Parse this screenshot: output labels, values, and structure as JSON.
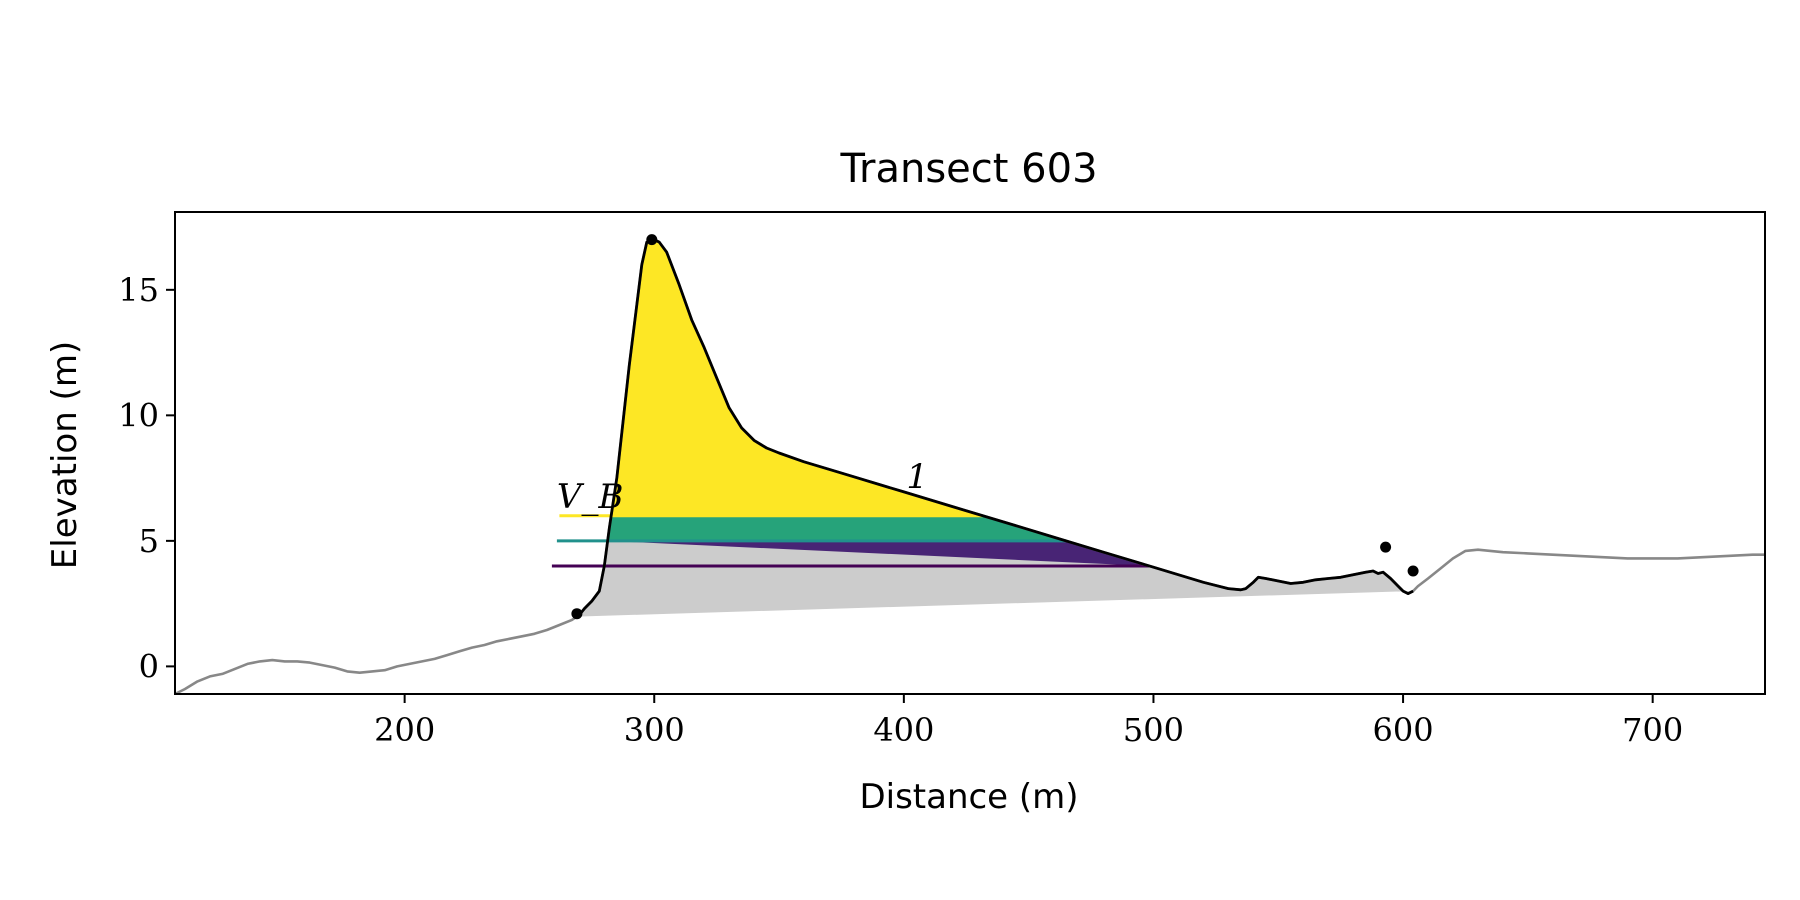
{
  "chart_data": {
    "type": "area",
    "title": "Transect 603",
    "xlabel": "Distance (m)",
    "ylabel": "Elevation (m)",
    "xlim": [
      108,
      745
    ],
    "ylim": [
      -1.1,
      18.1
    ],
    "xticks": [
      {
        "value": 200,
        "label": "200"
      },
      {
        "value": 300,
        "label": "300"
      },
      {
        "value": 400,
        "label": "400"
      },
      {
        "value": 500,
        "label": "500"
      },
      {
        "value": 600,
        "label": "600"
      },
      {
        "value": 700,
        "label": "700"
      }
    ],
    "yticks": [
      {
        "value": 0,
        "label": "0"
      },
      {
        "value": 5,
        "label": "5"
      },
      {
        "value": 10,
        "label": "10"
      },
      {
        "value": 15,
        "label": "15"
      }
    ],
    "grid": false,
    "annotations": [
      {
        "text": "V_B",
        "x": 261,
        "y": 6.3
      },
      {
        "text": "1",
        "x": 401,
        "y": 7.1
      }
    ],
    "colors": {
      "profile": "#888888",
      "dune_outline": "#000000",
      "base_fill": "#cccccc",
      "band_low": "#482475",
      "band_mid": "#26a37a",
      "band_high": "#fde725",
      "level_low": "#440154",
      "level_mid": "#21918c",
      "level_high": "#fde725"
    },
    "profile": {
      "x": [
        108,
        112,
        117,
        122,
        127,
        132,
        137,
        142,
        147,
        152,
        157,
        162,
        167,
        172,
        177,
        182,
        187,
        192,
        197,
        202,
        207,
        212,
        217,
        222,
        227,
        232,
        237,
        242,
        247,
        252,
        257,
        262,
        267,
        270,
        272,
        275,
        278,
        280,
        282,
        285,
        290,
        295,
        297,
        300,
        302,
        305,
        310,
        315,
        320,
        325,
        330,
        335,
        340,
        345,
        350,
        360,
        370,
        380,
        390,
        400,
        420,
        440,
        460,
        480,
        500,
        520,
        530,
        535,
        537,
        540,
        542,
        545,
        550,
        555,
        560,
        565,
        570,
        575,
        580,
        585,
        588,
        590,
        592,
        595,
        598,
        600,
        602,
        604,
        606,
        610,
        615,
        620,
        625,
        630,
        635,
        640,
        650,
        660,
        670,
        680,
        690,
        700,
        710,
        720,
        730,
        740,
        745
      ],
      "y": [
        -1.1,
        -0.9,
        -0.6,
        -0.4,
        -0.3,
        -0.1,
        0.1,
        0.2,
        0.25,
        0.2,
        0.2,
        0.15,
        0.05,
        -0.05,
        -0.2,
        -0.25,
        -0.2,
        -0.15,
        0.0,
        0.1,
        0.2,
        0.3,
        0.45,
        0.6,
        0.75,
        0.85,
        1.0,
        1.1,
        1.2,
        1.3,
        1.45,
        1.65,
        1.85,
        2.05,
        2.3,
        2.6,
        3.0,
        4.0,
        5.5,
        7.5,
        12.0,
        16.0,
        16.9,
        17.0,
        16.9,
        16.5,
        15.2,
        13.8,
        12.7,
        11.5,
        10.3,
        9.5,
        9.0,
        8.7,
        8.5,
        8.15,
        7.85,
        7.55,
        7.25,
        6.95,
        6.35,
        5.75,
        5.15,
        4.55,
        3.95,
        3.35,
        3.1,
        3.05,
        3.1,
        3.35,
        3.55,
        3.5,
        3.4,
        3.3,
        3.35,
        3.45,
        3.5,
        3.55,
        3.65,
        3.75,
        3.8,
        3.7,
        3.75,
        3.5,
        3.2,
        3.0,
        2.9,
        3.0,
        3.2,
        3.5,
        3.9,
        4.3,
        4.6,
        4.65,
        4.6,
        4.55,
        4.5,
        4.45,
        4.4,
        4.35,
        4.3,
        4.3,
        4.3,
        4.35,
        4.4,
        4.45,
        4.45
      ]
    },
    "dune": {
      "toe": {
        "x": 269,
        "y": 2.1
      },
      "crest": {
        "x": 299,
        "y": 17.0
      },
      "heel": {
        "x": 593,
        "y": 4.75
      },
      "end": {
        "x": 604,
        "y": 3.8
      },
      "base_line": {
        "from": [
          269,
          2.1
        ],
        "to": [
          604,
          3.8
        ]
      }
    },
    "levels": [
      {
        "name": "low",
        "elevation": 4.0,
        "x_start": 259
      },
      {
        "name": "mid",
        "elevation": 5.0,
        "x_start": 261
      },
      {
        "name": "high",
        "elevation": 6.0,
        "x_start": 262
      }
    ]
  }
}
